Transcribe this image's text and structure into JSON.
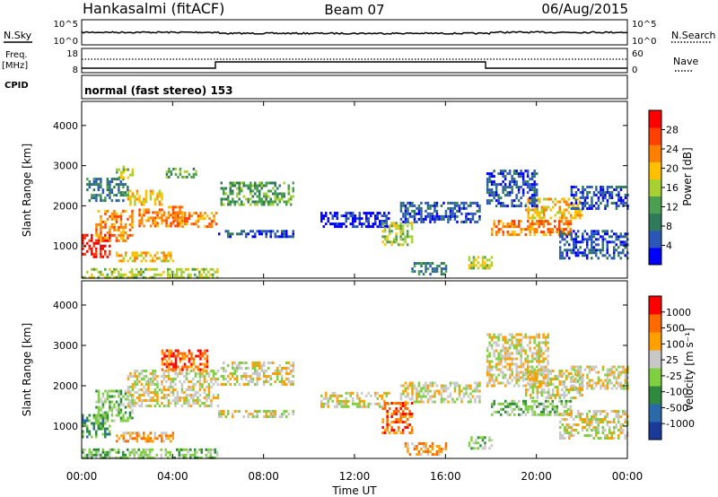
{
  "header": {
    "station": "Hankasalmi (fitACF)",
    "beam": "Beam 07",
    "date": "06/Aug/2015"
  },
  "noise_panel": {
    "left_label": "N.Sky",
    "right_label": "N.Search",
    "ticks_left": [
      "10^5",
      "10^0"
    ],
    "ticks_right": [
      "10^5",
      "10^0"
    ]
  },
  "freq_panel": {
    "left_label_top": "Freq.",
    "left_label_bottom": "[MHz]",
    "left_ticks": [
      "18",
      "8"
    ],
    "right_ticks": [
      "60",
      "0"
    ],
    "right_label": "Nave"
  },
  "cpid": {
    "label": "CPID",
    "text": "normal (fast stereo) 153"
  },
  "colors": {
    "power": [
      "#0000ff",
      "#2b57b8",
      "#2f7a5a",
      "#4aa050",
      "#a8d030",
      "#ffc000",
      "#ff8000",
      "#ff4000",
      "#ff0000"
    ],
    "velocity_neg": [
      "#ff0000",
      "#ff6a00",
      "#ffa000"
    ],
    "velocity_zero": "#c8c8c8",
    "velocity_pos": [
      "#7fd040",
      "#2f8a40",
      "#2b6aa8",
      "#1a3a9a"
    ]
  },
  "chart_data": [
    {
      "type": "heatmap",
      "name": "power",
      "xlabel": "",
      "ylabel": "Slant Range [km]",
      "yticks": [
        "1000",
        "2000",
        "3000",
        "4000"
      ],
      "y_range": [
        200,
        4600
      ],
      "x_range_hours": [
        0,
        24
      ],
      "colorbar_label": "Power [dB]",
      "colorbar_ticks": [
        "28",
        "24",
        "20",
        "16",
        "12",
        "8",
        "4"
      ],
      "blobs": [
        {
          "t0": 0.0,
          "t1": 1.2,
          "r0": 750,
          "r1": 1300,
          "level": 8
        },
        {
          "t0": 0.6,
          "t1": 2.2,
          "r0": 1100,
          "r1": 1900,
          "level": 6
        },
        {
          "t0": 2.0,
          "t1": 3.5,
          "r0": 2000,
          "r1": 2400,
          "level": 5
        },
        {
          "t0": 2.5,
          "t1": 4.5,
          "r0": 1500,
          "r1": 2000,
          "level": 6
        },
        {
          "t0": 4.0,
          "t1": 5.9,
          "r0": 1450,
          "r1": 1850,
          "level": 6
        },
        {
          "t0": 0.2,
          "t1": 2.0,
          "r0": 2100,
          "r1": 2700,
          "level": 2
        },
        {
          "t0": 1.5,
          "t1": 2.2,
          "r0": 2700,
          "r1": 3000,
          "level": 4
        },
        {
          "t0": 3.7,
          "t1": 5.0,
          "r0": 2700,
          "r1": 2950,
          "level": 3
        },
        {
          "t0": 1.5,
          "t1": 4.0,
          "r0": 620,
          "r1": 860,
          "level": 5
        },
        {
          "t0": 6.1,
          "t1": 9.3,
          "r0": 2000,
          "r1": 2600,
          "level": 3
        },
        {
          "t0": 6.0,
          "t1": 9.3,
          "r0": 1200,
          "r1": 1400,
          "level": 1
        },
        {
          "t0": 10.5,
          "t1": 13.5,
          "r0": 1450,
          "r1": 1850,
          "level": 0
        },
        {
          "t0": 13.2,
          "t1": 14.5,
          "r0": 1000,
          "r1": 1600,
          "level": 4
        },
        {
          "t0": 14.0,
          "t1": 17.5,
          "r0": 1600,
          "r1": 2100,
          "level": 1
        },
        {
          "t0": 14.5,
          "t1": 16.0,
          "r0": 300,
          "r1": 600,
          "level": 2
        },
        {
          "t0": 17.0,
          "t1": 18.0,
          "r0": 450,
          "r1": 750,
          "level": 4
        },
        {
          "t0": 18.0,
          "t1": 21.5,
          "r0": 1250,
          "r1": 1650,
          "level": 6
        },
        {
          "t0": 19.5,
          "t1": 22.0,
          "r0": 1700,
          "r1": 2200,
          "level": 5
        },
        {
          "t0": 17.8,
          "t1": 20.0,
          "r0": 2000,
          "r1": 2900,
          "level": 1
        },
        {
          "t0": 21.0,
          "t1": 24.0,
          "r0": 700,
          "r1": 1400,
          "level": 1
        },
        {
          "t0": 21.5,
          "t1": 24.0,
          "r0": 1900,
          "r1": 2500,
          "level": 1
        },
        {
          "t0": 0.0,
          "t1": 6.0,
          "r0": 200,
          "r1": 450,
          "level": 4
        }
      ]
    },
    {
      "type": "heatmap",
      "name": "velocity",
      "xlabel": "Time UT",
      "ylabel": "Slant Range [km]",
      "yticks": [
        "1000",
        "2000",
        "3000",
        "4000"
      ],
      "y_range": [
        200,
        4600
      ],
      "x_range_hours": [
        0,
        24
      ],
      "xticks": [
        "00:00",
        "04:00",
        "08:00",
        "12:00",
        "16:00",
        "20:00",
        "00:00"
      ],
      "colorbar_label": "Velocity [m s⁻¹]",
      "colorbar_ticks": [
        "1000",
        "500",
        "100",
        "25",
        "-25",
        "-100",
        "-500",
        "-1000"
      ],
      "blobs": [
        {
          "t0": 0.0,
          "t1": 1.2,
          "r0": 750,
          "r1": 1300,
          "level": 5
        },
        {
          "t0": 0.6,
          "t1": 2.2,
          "r0": 1100,
          "r1": 1900,
          "level": 4
        },
        {
          "t0": 2.0,
          "t1": 6.0,
          "r0": 1500,
          "r1": 2400,
          "level": 3
        },
        {
          "t0": 6.1,
          "t1": 9.3,
          "r0": 2000,
          "r1": 2600,
          "level": 3
        },
        {
          "t0": 3.5,
          "t1": 5.5,
          "r0": 2400,
          "r1": 2900,
          "level": 1
        },
        {
          "t0": 1.5,
          "t1": 4.0,
          "r0": 620,
          "r1": 860,
          "level": 2
        },
        {
          "t0": 6.0,
          "t1": 9.3,
          "r0": 1200,
          "r1": 1400,
          "level": 3
        },
        {
          "t0": 10.5,
          "t1": 13.5,
          "r0": 1450,
          "r1": 1850,
          "level": 3
        },
        {
          "t0": 13.2,
          "t1": 14.5,
          "r0": 800,
          "r1": 1600,
          "level": 1
        },
        {
          "t0": 14.2,
          "t1": 16.0,
          "r0": 300,
          "r1": 600,
          "level": 2
        },
        {
          "t0": 14.0,
          "t1": 17.5,
          "r0": 1600,
          "r1": 2100,
          "level": 3
        },
        {
          "t0": 17.0,
          "t1": 18.0,
          "r0": 450,
          "r1": 750,
          "level": 4
        },
        {
          "t0": 18.0,
          "t1": 21.5,
          "r0": 1250,
          "r1": 1650,
          "level": 4
        },
        {
          "t0": 19.5,
          "t1": 22.0,
          "r0": 1700,
          "r1": 2400,
          "level": 3
        },
        {
          "t0": 17.8,
          "t1": 20.5,
          "r0": 2000,
          "r1": 3300,
          "level": 3
        },
        {
          "t0": 21.0,
          "t1": 24.0,
          "r0": 700,
          "r1": 1400,
          "level": 3
        },
        {
          "t0": 21.5,
          "t1": 24.0,
          "r0": 1900,
          "r1": 2500,
          "level": 3
        },
        {
          "t0": 0.0,
          "t1": 6.0,
          "r0": 200,
          "r1": 450,
          "level": 4
        }
      ]
    }
  ]
}
